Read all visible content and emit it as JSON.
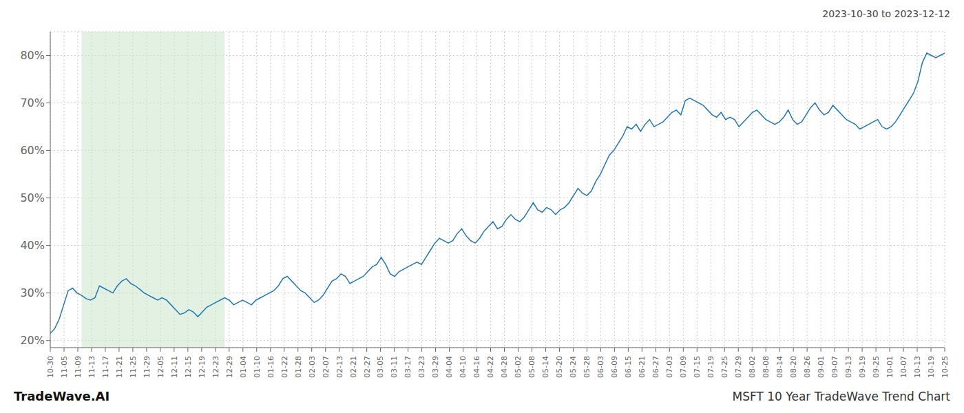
{
  "chart_data": {
    "type": "line",
    "title": "MSFT 10 Year TradeWave Trend Chart",
    "subtitle": "2023-10-30 to 2023-12-12",
    "annotations": [
      "TradeWave.AI"
    ],
    "color": "#1f77b4",
    "grid": true,
    "shade": {
      "x": [
        7,
        39
      ],
      "color": "#cce5cc"
    },
    "xlim": [
      0,
      200
    ],
    "xticks": [
      {
        "value": 0,
        "label": "10-30"
      },
      {
        "value": 3.076923,
        "label": "11-05"
      },
      {
        "value": 6.153846,
        "label": "11-09"
      },
      {
        "value": 9.230769,
        "label": "11-13"
      },
      {
        "value": 12.307692,
        "label": "11-17"
      },
      {
        "value": 15.384615,
        "label": "11-21"
      },
      {
        "value": 18.461538,
        "label": "11-25"
      },
      {
        "value": 21.538462,
        "label": "11-29"
      },
      {
        "value": 24.615385,
        "label": "12-05"
      },
      {
        "value": 27.692308,
        "label": "12-11"
      },
      {
        "value": 30.769231,
        "label": "12-15"
      },
      {
        "value": 33.846154,
        "label": "12-19"
      },
      {
        "value": 36.923077,
        "label": "12-23"
      },
      {
        "value": 40,
        "label": "12-29"
      },
      {
        "value": 43.076923,
        "label": "01-04"
      },
      {
        "value": 46.153846,
        "label": "01-10"
      },
      {
        "value": 49.230769,
        "label": "01-16"
      },
      {
        "value": 52.307692,
        "label": "01-22"
      },
      {
        "value": 55.384615,
        "label": "01-28"
      },
      {
        "value": 58.461538,
        "label": "02-03"
      },
      {
        "value": 61.538462,
        "label": "02-07"
      },
      {
        "value": 64.615385,
        "label": "02-13"
      },
      {
        "value": 67.692308,
        "label": "02-21"
      },
      {
        "value": 70.769231,
        "label": "02-27"
      },
      {
        "value": 73.846154,
        "label": "03-05"
      },
      {
        "value": 76.923077,
        "label": "03-11"
      },
      {
        "value": 80,
        "label": "03-17"
      },
      {
        "value": 83.076923,
        "label": "03-23"
      },
      {
        "value": 86.153846,
        "label": "03-29"
      },
      {
        "value": 89.230769,
        "label": "04-04"
      },
      {
        "value": 92.307692,
        "label": "04-10"
      },
      {
        "value": 95.384615,
        "label": "04-16"
      },
      {
        "value": 98.461538,
        "label": "04-22"
      },
      {
        "value": 101.538462,
        "label": "04-28"
      },
      {
        "value": 104.615385,
        "label": "05-02"
      },
      {
        "value": 107.692308,
        "label": "05-08"
      },
      {
        "value": 110.769231,
        "label": "05-14"
      },
      {
        "value": 113.846154,
        "label": "05-20"
      },
      {
        "value": 116.923077,
        "label": "05-24"
      },
      {
        "value": 120,
        "label": "05-28"
      },
      {
        "value": 123.076923,
        "label": "06-03"
      },
      {
        "value": 126.153846,
        "label": "06-09"
      },
      {
        "value": 129.230769,
        "label": "06-15"
      },
      {
        "value": 132.307692,
        "label": "06-21"
      },
      {
        "value": 135.384615,
        "label": "06-27"
      },
      {
        "value": 138.461538,
        "label": "07-03"
      },
      {
        "value": 141.538462,
        "label": "07-09"
      },
      {
        "value": 144.615385,
        "label": "07-15"
      },
      {
        "value": 147.692308,
        "label": "07-19"
      },
      {
        "value": 150.769231,
        "label": "07-25"
      },
      {
        "value": 153.846154,
        "label": "07-29"
      },
      {
        "value": 156.923077,
        "label": "08-02"
      },
      {
        "value": 160,
        "label": "08-08"
      },
      {
        "value": 163.076923,
        "label": "08-14"
      },
      {
        "value": 166.153846,
        "label": "08-20"
      },
      {
        "value": 169.230769,
        "label": "08-26"
      },
      {
        "value": 172.307692,
        "label": "09-01"
      },
      {
        "value": 175.384615,
        "label": "09-07"
      },
      {
        "value": 178.461538,
        "label": "09-13"
      },
      {
        "value": 181.538462,
        "label": "09-19"
      },
      {
        "value": 184.615385,
        "label": "09-25"
      },
      {
        "value": 187.692308,
        "label": "10-01"
      },
      {
        "value": 190.769231,
        "label": "10-07"
      },
      {
        "value": 193.846154,
        "label": "10-13"
      },
      {
        "value": 196.923077,
        "label": "10-19"
      },
      {
        "value": 200,
        "label": "10-25"
      }
    ],
    "ylim": [
      18.5,
      85
    ],
    "yticks": [
      {
        "value": 20,
        "label": "20%"
      },
      {
        "value": 30,
        "label": "30%"
      },
      {
        "value": 40,
        "label": "40%"
      },
      {
        "value": 50,
        "label": "50%"
      },
      {
        "value": 60,
        "label": "60%"
      },
      {
        "value": 70,
        "label": "70%"
      },
      {
        "value": 80,
        "label": "80%"
      }
    ],
    "x": [
      0,
      1,
      2,
      3,
      4,
      5,
      6,
      7,
      8,
      9,
      10,
      11,
      12,
      13,
      14,
      15,
      16,
      17,
      18,
      19,
      20,
      21,
      22,
      23,
      24,
      25,
      26,
      27,
      28,
      29,
      30,
      31,
      32,
      33,
      34,
      35,
      36,
      37,
      38,
      39,
      40,
      41,
      42,
      43,
      44,
      45,
      46,
      47,
      48,
      49,
      50,
      51,
      52,
      53,
      54,
      55,
      56,
      57,
      58,
      59,
      60,
      61,
      62,
      63,
      64,
      65,
      66,
      67,
      68,
      69,
      70,
      71,
      72,
      73,
      74,
      75,
      76,
      77,
      78,
      79,
      80,
      81,
      82,
      83,
      84,
      85,
      86,
      87,
      88,
      89,
      90,
      91,
      92,
      93,
      94,
      95,
      96,
      97,
      98,
      99,
      100,
      101,
      102,
      103,
      104,
      105,
      106,
      107,
      108,
      109,
      110,
      111,
      112,
      113,
      114,
      115,
      116,
      117,
      118,
      119,
      120,
      121,
      122,
      123,
      124,
      125,
      126,
      127,
      128,
      129,
      130,
      131,
      132,
      133,
      134,
      135,
      136,
      137,
      138,
      139,
      140,
      141,
      142,
      143,
      144,
      145,
      146,
      147,
      148,
      149,
      150,
      151,
      152,
      153,
      154,
      155,
      156,
      157,
      158,
      159,
      160,
      161,
      162,
      163,
      164,
      165,
      166,
      167,
      168,
      169,
      170,
      171,
      172,
      173,
      174,
      175,
      176,
      177,
      178,
      179,
      180,
      181,
      182,
      183,
      184,
      185,
      186,
      187,
      188,
      189,
      190,
      191,
      192,
      193,
      194,
      195,
      196,
      197,
      198,
      199,
      200
    ],
    "values": [
      21.5,
      22.5,
      24.5,
      27.5,
      30.5,
      31.0,
      30.0,
      29.5,
      28.8,
      28.5,
      29.0,
      31.5,
      31.0,
      30.5,
      30.0,
      31.5,
      32.5,
      33.0,
      32.0,
      31.5,
      30.8,
      30.0,
      29.5,
      29.0,
      28.5,
      29.0,
      28.5,
      27.5,
      26.5,
      25.5,
      25.8,
      26.5,
      26.0,
      25.0,
      26.0,
      27.0,
      27.5,
      28.0,
      28.5,
      29.0,
      28.5,
      27.5,
      28.0,
      28.5,
      28.0,
      27.5,
      28.5,
      29.0,
      29.5,
      30.0,
      30.5,
      31.5,
      33.0,
      33.5,
      32.5,
      31.5,
      30.5,
      30.0,
      29.0,
      28.0,
      28.5,
      29.5,
      31.0,
      32.5,
      33.0,
      34.0,
      33.5,
      32.0,
      32.5,
      33.0,
      33.5,
      34.5,
      35.5,
      36.0,
      37.5,
      36.0,
      34.0,
      33.5,
      34.5,
      35.0,
      35.5,
      36.0,
      36.5,
      36.0,
      37.5,
      39.0,
      40.5,
      41.5,
      41.0,
      40.5,
      41.0,
      42.5,
      43.5,
      42.0,
      41.0,
      40.5,
      41.5,
      43.0,
      44.0,
      45.0,
      43.5,
      44.0,
      45.5,
      46.5,
      45.5,
      45.0,
      46.0,
      47.5,
      49.0,
      47.5,
      47.0,
      48.0,
      47.5,
      46.5,
      47.5,
      48.0,
      49.0,
      50.5,
      52.0,
      51.0,
      50.5,
      51.5,
      53.5,
      55.0,
      57.0,
      59.0,
      60.0,
      61.5,
      63.0,
      65.0,
      64.5,
      65.5,
      64.0,
      65.5,
      66.5,
      65.0,
      65.5,
      66.0,
      67.0,
      68.0,
      68.5,
      67.5,
      70.5,
      71.0,
      70.5,
      70.0,
      69.5,
      68.5,
      67.5,
      67.0,
      68.0,
      66.5,
      67.0,
      66.5,
      65.0,
      66.0,
      67.0,
      68.0,
      68.5,
      67.5,
      66.5,
      66.0,
      65.5,
      66.0,
      67.0,
      68.5,
      66.5,
      65.5,
      66.0,
      67.5,
      69.0,
      70.0,
      68.5,
      67.5,
      68.0,
      69.5,
      68.5,
      67.5,
      66.5,
      66.0,
      65.5,
      64.5,
      65.0,
      65.5,
      66.0,
      66.5,
      65.0,
      64.5,
      65.0,
      66.0,
      67.5,
      69.0,
      70.5,
      72.0,
      74.5,
      78.5,
      80.5,
      80.0,
      79.5,
      80.0,
      80.5
    ]
  }
}
